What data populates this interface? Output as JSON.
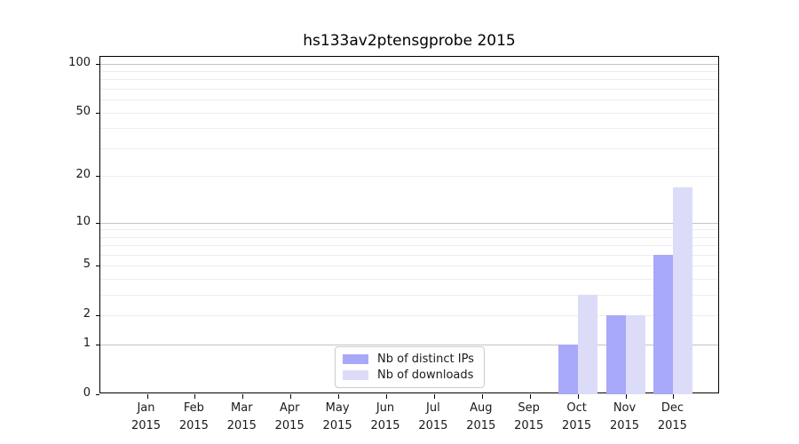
{
  "chart_data": {
    "type": "bar",
    "title": "hs133av2ptensgprobe 2015",
    "year_label": "2015",
    "categories": [
      "Jan",
      "Feb",
      "Mar",
      "Apr",
      "May",
      "Jun",
      "Jul",
      "Aug",
      "Sep",
      "Oct",
      "Nov",
      "Dec"
    ],
    "series": [
      {
        "name": "Nb of distinct IPs",
        "color": "#a8a8f8",
        "values": [
          0,
          0,
          0,
          0,
          0,
          0,
          0,
          0,
          0,
          1,
          2,
          6
        ]
      },
      {
        "name": "Nb of downloads",
        "color": "#dcdcf9",
        "values": [
          0,
          0,
          0,
          0,
          0,
          0,
          0,
          0,
          0,
          3,
          2,
          17
        ]
      }
    ],
    "xlabel": "",
    "ylabel": "",
    "yscale": "log10(1+y)",
    "ylim": [
      0,
      110
    ],
    "yticks": [
      0,
      1,
      2,
      5,
      10,
      20,
      50,
      100
    ],
    "major_gridlines": [
      1,
      10,
      100
    ],
    "minor_gridlines": [
      2,
      3,
      4,
      5,
      6,
      7,
      8,
      9,
      20,
      30,
      40,
      50,
      60,
      70,
      80,
      90
    ],
    "grid": true,
    "legend_position": "inside-bottom-center",
    "colors": {
      "major_grid": "#c3c3c3",
      "minor_grid": "#ededed",
      "spine": "#000000",
      "tick_label": "#1a1a1a",
      "background": "#ffffff"
    }
  }
}
